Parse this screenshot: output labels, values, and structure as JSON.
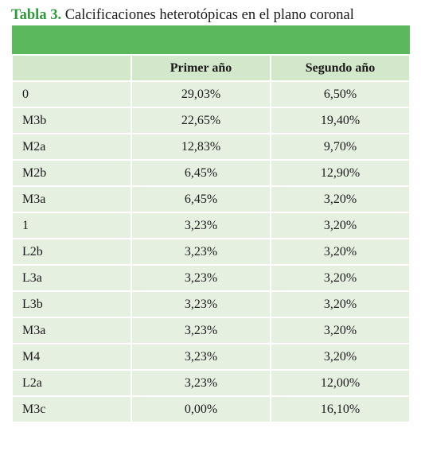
{
  "caption": {
    "label": "Tabla 3.",
    "text": "Calcificaciones heterotópicas en el plano coronal"
  },
  "colors": {
    "banner": "#5cb85c",
    "header_bg": "#d3e7cb",
    "row_bg": "#e6f0e0",
    "caption_label": "#2e9a3c"
  },
  "table": {
    "headers": [
      "",
      "Primer año",
      "Segundo año"
    ],
    "rows": [
      [
        "0",
        "29,03%",
        "6,50%"
      ],
      [
        "M3b",
        "22,65%",
        "19,40%"
      ],
      [
        "M2a",
        "12,83%",
        "9,70%"
      ],
      [
        "M2b",
        "6,45%",
        "12,90%"
      ],
      [
        "M3a",
        "6,45%",
        "3,20%"
      ],
      [
        "1",
        "3,23%",
        "3,20%"
      ],
      [
        "L2b",
        "3,23%",
        "3,20%"
      ],
      [
        "L3a",
        "3,23%",
        "3,20%"
      ],
      [
        "L3b",
        "3,23%",
        "3,20%"
      ],
      [
        "M3a",
        "3,23%",
        "3,20%"
      ],
      [
        "M4",
        "3,23%",
        "3,20%"
      ],
      [
        "L2a",
        "3,23%",
        "12,00%"
      ],
      [
        "M3c",
        "0,00%",
        "16,10%"
      ]
    ]
  }
}
